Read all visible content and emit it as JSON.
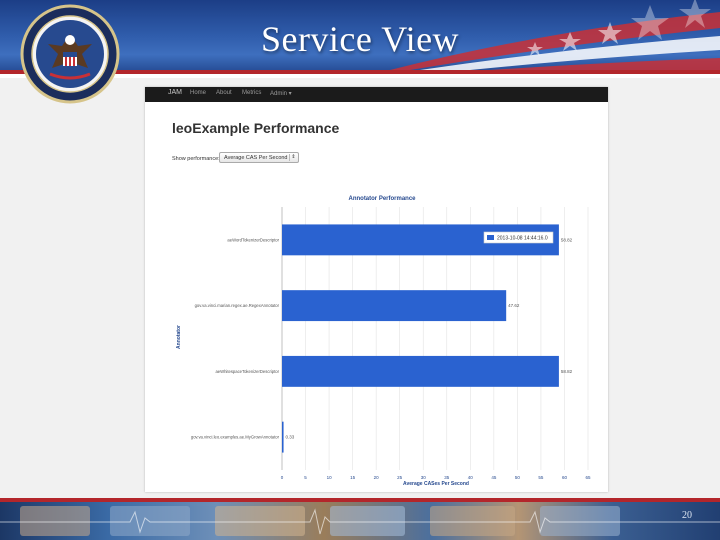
{
  "slide": {
    "title": "Service View",
    "page_number": "20"
  },
  "app": {
    "nav": {
      "brand": "JAM",
      "items": [
        "Home",
        "About",
        "Metrics",
        "Admin ▾"
      ]
    },
    "heading": "leoExample Performance",
    "show_performance_label": "Show performance:",
    "selected_metric": "Average CAS Per Second",
    "select_arrow": "⇕"
  },
  "chart_data": {
    "type": "bar",
    "orientation": "horizontal",
    "title": "Annotator Performance",
    "xlabel": "Average CASes Per Second",
    "ylabel": "Annotator",
    "categories": [
      "aeWordTokenizerDescriptor",
      "gov.va.vinci.marian.regex.ae.RegexAnnotator",
      "aeWhitespaceTokenizerDescriptor",
      "gov.va.vinci.leo.examples.ae.MyGrowAnnotator"
    ],
    "series": [
      {
        "name": "2013-10-08 14:44:16.0",
        "values": [
          58.82,
          47.62,
          58.82,
          0.33
        ]
      }
    ],
    "data_labels": [
      "58.82",
      "47.62",
      "58.82",
      "0.33"
    ],
    "xlim": [
      0,
      65
    ],
    "xticks": [
      0,
      5,
      10,
      15,
      20,
      25,
      30,
      35,
      40,
      45,
      50,
      55,
      60,
      65
    ],
    "grid": true,
    "legend_position": "top-right",
    "bar_color": "#2a62d0"
  }
}
